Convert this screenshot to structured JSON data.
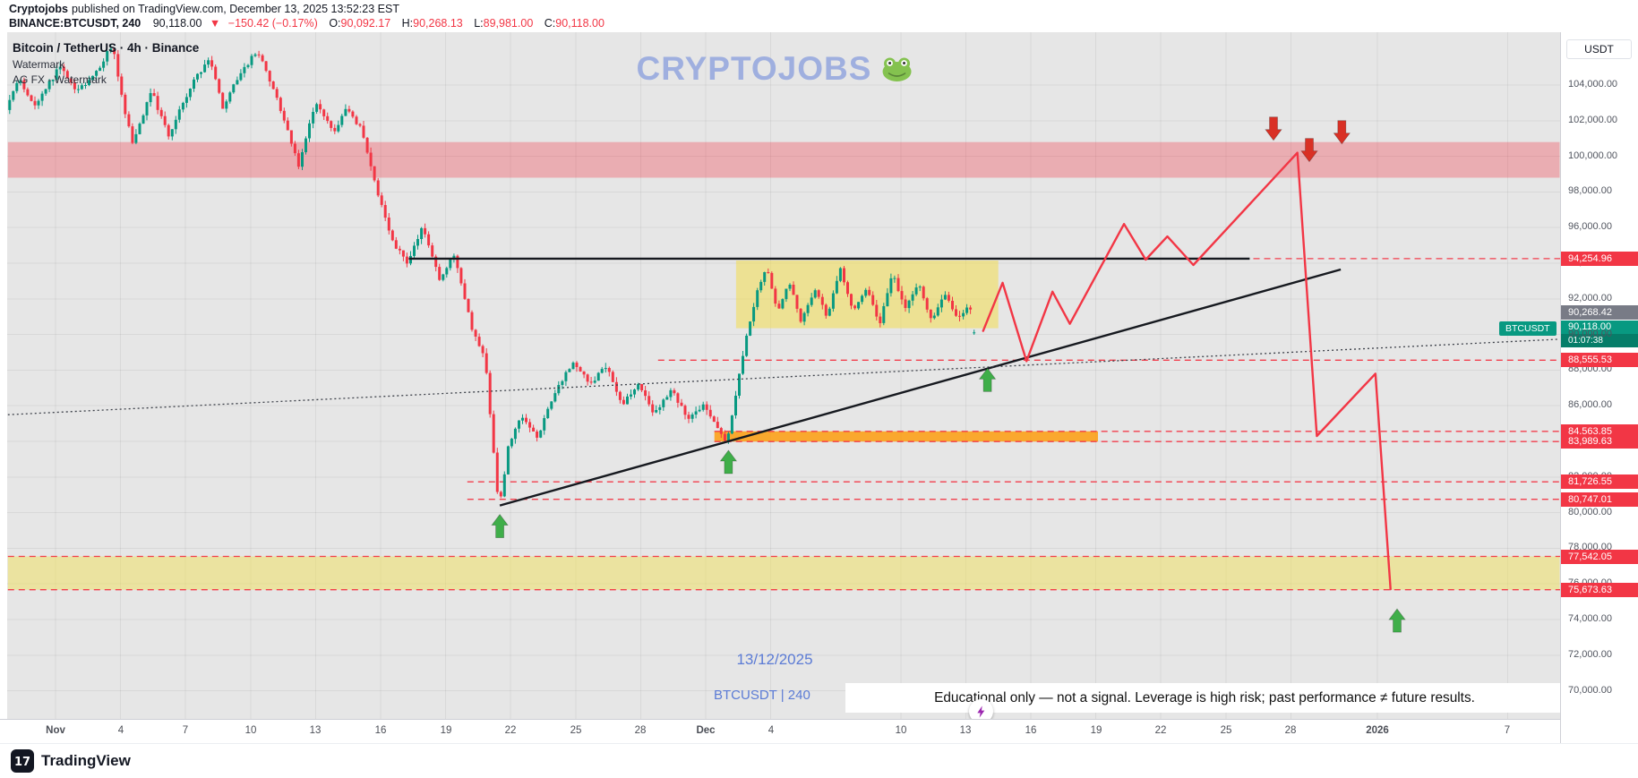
{
  "header": {
    "publisher": "Cryptojobs",
    "published_info": "published on TradingView.com, December 13, 2025 13:52:23 EST",
    "symbol": "BINANCE:BTCUSDT, 240",
    "price": "90,118.00",
    "change_dir": "▼",
    "change": "−150.42 (−0.17%)",
    "ohlc": [
      {
        "label": "O:",
        "value": "90,092.17"
      },
      {
        "label": "H:",
        "value": "90,268.13"
      },
      {
        "label": "L:",
        "value": "89,981.00"
      },
      {
        "label": "C:",
        "value": "90,118.00"
      }
    ]
  },
  "chart": {
    "legend_title": "Bitcoin / TetherUS · 4h · Binance",
    "legend_line2": "Watermark",
    "legend_line3": "AG FX - Watermark",
    "watermark_text": "CRYPTOJOBS",
    "watermark_emoji": "🐸",
    "currency_button": "USDT",
    "symbol_tag": "BTCUSDT",
    "current_price_label": "90,118.00",
    "countdown": "01:07:38",
    "high_price_label": "90,268.42",
    "date_annotation": "13/12/2025",
    "symbol_annotation": "BTCUSDT | 240",
    "disclaimer": "Educational only — not a signal. Leverage is high risk; past performance ≠ future results.",
    "icons": {
      "boost": "lightning-icon",
      "watermark": "frog-icon",
      "change": "down-triangle-icon"
    }
  },
  "footer": {
    "brand": "TradingView"
  },
  "chart_data": {
    "type": "candlestick",
    "symbol": "BTCUSDT",
    "exchange": "Binance",
    "timeframe_minutes": 240,
    "y_axis": {
      "min": 68500,
      "max": 106900,
      "tick_start": 70000,
      "tick_end": 104000,
      "tick_step": 2000
    },
    "y_tick_labels": [
      "104,000.00",
      "102,000.00",
      "100,000.00",
      "98,000.00",
      "96,000.00",
      "94,000.00",
      "92,000.00",
      "90,000.00",
      "88,000.00",
      "86,000.00",
      "84,000.00",
      "82,000.00",
      "80,000.00",
      "78,000.00",
      "76,000.00",
      "74,000.00",
      "72,000.00",
      "70,000.00"
    ],
    "x_axis_labels": [
      {
        "label": "Nov",
        "day": 0
      },
      {
        "label": "4",
        "day": 3
      },
      {
        "label": "7",
        "day": 6
      },
      {
        "label": "10",
        "day": 9
      },
      {
        "label": "13",
        "day": 12
      },
      {
        "label": "16",
        "day": 15
      },
      {
        "label": "19",
        "day": 18
      },
      {
        "label": "22",
        "day": 21
      },
      {
        "label": "25",
        "day": 24
      },
      {
        "label": "28",
        "day": 27
      },
      {
        "label": "Dec",
        "day": 30
      },
      {
        "label": "4",
        "day": 33
      },
      {
        "label": "10",
        "day": 39
      },
      {
        "label": "13",
        "day": 42
      },
      {
        "label": "16",
        "day": 45
      },
      {
        "label": "19",
        "day": 48
      },
      {
        "label": "22",
        "day": 51
      },
      {
        "label": "25",
        "day": 54
      },
      {
        "label": "28",
        "day": 57
      },
      {
        "label": "2026",
        "day": 61
      },
      {
        "label": "7",
        "day": 67
      }
    ],
    "price_path": [
      [
        -2.2,
        102600
      ],
      [
        -1.6,
        104300
      ],
      [
        -0.9,
        102700
      ],
      [
        0.3,
        105100
      ],
      [
        1.1,
        103600
      ],
      [
        2,
        104800
      ],
      [
        2.7,
        106300
      ],
      [
        3.2,
        103000
      ],
      [
        3.65,
        100600
      ],
      [
        4.5,
        103700
      ],
      [
        5.3,
        101100
      ],
      [
        6.4,
        104200
      ],
      [
        7.2,
        105500
      ],
      [
        7.8,
        102800
      ],
      [
        8.6,
        104600
      ],
      [
        9.4,
        106000
      ],
      [
        10.3,
        103200
      ],
      [
        11.3,
        99500
      ],
      [
        12.1,
        103100
      ],
      [
        12.9,
        101300
      ],
      [
        13.5,
        102600
      ],
      [
        14.2,
        101500
      ],
      [
        14.9,
        98200
      ],
      [
        15.6,
        95300
      ],
      [
        16.3,
        94000
      ],
      [
        17,
        96000
      ],
      [
        17.8,
        93100
      ],
      [
        18.5,
        94500
      ],
      [
        19.3,
        90300
      ],
      [
        19.9,
        88600
      ],
      [
        20.2,
        84800
      ],
      [
        20.55,
        80150
      ],
      [
        21,
        83900
      ],
      [
        21.6,
        85400
      ],
      [
        22.3,
        84200
      ],
      [
        23.2,
        87000
      ],
      [
        24,
        88400
      ],
      [
        24.8,
        87200
      ],
      [
        25.5,
        88300
      ],
      [
        26.2,
        86000
      ],
      [
        27,
        87300
      ],
      [
        27.7,
        85500
      ],
      [
        28.5,
        86900
      ],
      [
        29.3,
        85200
      ],
      [
        30,
        86000
      ],
      [
        30.6,
        84800
      ],
      [
        31.05,
        84000
      ],
      [
        31.5,
        86800
      ],
      [
        31.9,
        89500
      ],
      [
        32.4,
        92200
      ],
      [
        32.9,
        93900
      ],
      [
        33.4,
        91200
      ],
      [
        33.9,
        93000
      ],
      [
        34.5,
        90700
      ],
      [
        35.1,
        92500
      ],
      [
        35.7,
        91000
      ],
      [
        36.3,
        93700
      ],
      [
        36.9,
        91300
      ],
      [
        37.5,
        92700
      ],
      [
        38.1,
        90600
      ],
      [
        38.7,
        93400
      ],
      [
        39.3,
        91400
      ],
      [
        39.9,
        92900
      ],
      [
        40.5,
        90700
      ],
      [
        41.1,
        92300
      ],
      [
        41.7,
        90800
      ],
      [
        42.2,
        91700
      ],
      [
        42.63,
        90118
      ]
    ],
    "last_candle": {
      "open": 90092.17,
      "high": 90268.13,
      "low": 89981.0,
      "close": 90118.0
    },
    "levels": [
      {
        "price": 94254.96,
        "label": "94,254.96",
        "from_day": 27.5
      },
      {
        "price": 88555.53,
        "label": "88,555.53",
        "from_day": 27.8
      },
      {
        "price": 84563.85,
        "label": "84,563.85",
        "from_day": 30.4
      },
      {
        "price": 83989.63,
        "label": "83,989.63",
        "from_day": 30.4
      },
      {
        "price": 81726.55,
        "label": "81,726.55",
        "from_day": 19
      },
      {
        "price": 80747.01,
        "label": "80,747.01",
        "from_day": 19
      },
      {
        "price": 77542.05,
        "label": "77,542.05",
        "from_day": -2.2
      },
      {
        "price": 75673.63,
        "label": "75,673.63",
        "from_day": -2.2
      }
    ],
    "zones": [
      {
        "name": "resistance-zone",
        "from_day": -2.2,
        "to_day": 69.4,
        "price_top": 100800,
        "price_bottom": 98800,
        "color": "#f23645",
        "opacity": 0.32
      },
      {
        "name": "consolidation-box",
        "from_day": 31.4,
        "to_day": 43.5,
        "price_top": 94150,
        "price_bottom": 90350,
        "color": "#f2dd4e",
        "opacity": 0.55
      },
      {
        "name": "demand-zone",
        "from_day": 30.4,
        "to_day": 48.1,
        "price_top": 84563.85,
        "price_bottom": 83989.63,
        "color": "#ff9800",
        "opacity": 0.8
      },
      {
        "name": "support-zone",
        "from_day": -2.2,
        "to_day": 69.4,
        "price_top": 77542.05,
        "price_bottom": 75673.63,
        "color": "#f0e05a",
        "opacity": 0.5
      }
    ],
    "trendlines": [
      {
        "name": "horizontal-resistance",
        "from_day": 16.3,
        "from_price": 94254.96,
        "to_day": 55.1,
        "to_price": 94254.96,
        "color": "#16191f",
        "width": 2.4
      },
      {
        "name": "ascending-support",
        "from_day": 20.5,
        "from_price": 80400,
        "to_day": 59.3,
        "to_price": 93650,
        "color": "#16191f",
        "width": 2.4
      },
      {
        "name": "dotted-baseline",
        "from_day": -2.2,
        "from_price": 85500,
        "to_day": 69.3,
        "to_price": 89730,
        "color": "#3c4049",
        "width": 1.3,
        "dash": "2 3"
      }
    ],
    "projection_path": [
      [
        42.8,
        90200
      ],
      [
        43.7,
        92900
      ],
      [
        44.8,
        88500
      ],
      [
        46,
        92400
      ],
      [
        46.8,
        90600
      ],
      [
        49.3,
        96200
      ],
      [
        50.3,
        94200
      ],
      [
        51.3,
        95500
      ],
      [
        52.5,
        93900
      ],
      [
        57.3,
        100200
      ],
      [
        58.2,
        84300
      ],
      [
        60.9,
        87800
      ],
      [
        61.6,
        75700
      ]
    ],
    "arrows": [
      {
        "day": 20.5,
        "price": 79900,
        "dir": "up"
      },
      {
        "day": 31.05,
        "price": 83500,
        "dir": "up"
      },
      {
        "day": 43,
        "price": 88100,
        "dir": "up"
      },
      {
        "day": 61.9,
        "price": 74600,
        "dir": "up"
      },
      {
        "day": 56.2,
        "price": 100900,
        "dir": "down"
      },
      {
        "day": 57.85,
        "price": 99700,
        "dir": "down"
      },
      {
        "day": 59.35,
        "price": 100700,
        "dir": "down"
      }
    ],
    "colors": {
      "up": "#089981",
      "down": "#f23645",
      "level": "#f23645",
      "projection": "#f23645",
      "zone_resistance": "#f23645",
      "zone_box": "#f2dd4e",
      "zone_orange": "#ff9800",
      "zone_support": "#f0e05a",
      "trendline": "#16191f",
      "arrow_up": "#3fae49",
      "arrow_down": "#d93025"
    }
  }
}
